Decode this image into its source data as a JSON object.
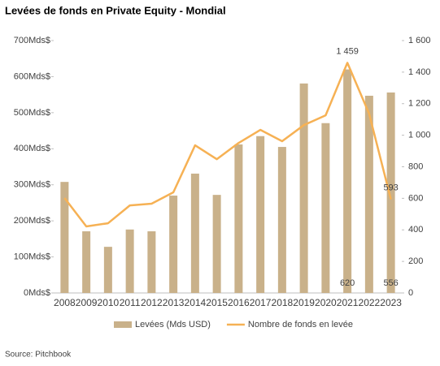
{
  "chart_data": {
    "type": "bar-line",
    "title": "Levées de fonds en Private Equity - Mondial",
    "source": "Source: Pitchbook",
    "categories": [
      "2008",
      "2009",
      "2010",
      "2011",
      "2012",
      "2013",
      "2014",
      "2015",
      "2016",
      "2017",
      "2018",
      "2019",
      "2020",
      "2021",
      "2022",
      "2023"
    ],
    "series": [
      {
        "name": "Levées (Mds USD)",
        "type": "bar",
        "color": "#c9b18a",
        "axis": "y",
        "values": [
          308,
          171,
          128,
          176,
          171,
          270,
          331,
          272,
          412,
          435,
          405,
          581,
          471,
          620,
          547,
          556
        ],
        "value_labels": [
          null,
          null,
          null,
          null,
          null,
          null,
          null,
          null,
          null,
          null,
          null,
          null,
          null,
          "620",
          null,
          "556"
        ]
      },
      {
        "name": "Nombre de fonds en levée",
        "type": "line",
        "color": "#f6b154",
        "axis": "y2",
        "values": [
          602,
          422,
          442,
          555,
          566,
          638,
          936,
          848,
          951,
          1034,
          962,
          1064,
          1126,
          1459,
          1136,
          593
        ],
        "value_labels": [
          null,
          null,
          null,
          null,
          null,
          null,
          null,
          null,
          null,
          null,
          null,
          null,
          null,
          "1 459",
          null,
          "593"
        ]
      }
    ],
    "ylim": [
      0,
      700
    ],
    "yticks": [
      {
        "value": 0,
        "label": "0Mds$"
      },
      {
        "value": 100,
        "label": "100Mds$"
      },
      {
        "value": 200,
        "label": "200Mds$"
      },
      {
        "value": 300,
        "label": "300Mds$"
      },
      {
        "value": 400,
        "label": "400Mds$"
      },
      {
        "value": 500,
        "label": "500Mds$"
      },
      {
        "value": 600,
        "label": "600Mds$"
      },
      {
        "value": 700,
        "label": "700Mds$"
      }
    ],
    "y2lim": [
      0,
      1600
    ],
    "y2ticks": [
      0,
      200,
      400,
      600,
      800,
      {
        "value": 1000,
        "label": "1 000"
      },
      {
        "value": 1200,
        "label": "1 200"
      },
      {
        "value": 1400,
        "label": "1 400"
      },
      {
        "value": 1600,
        "label": "1 600"
      }
    ],
    "legend": "bottom"
  }
}
